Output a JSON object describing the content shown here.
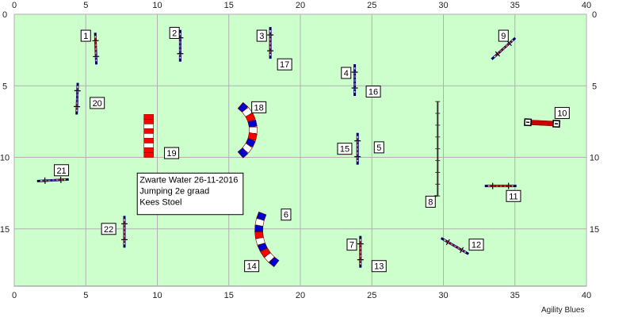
{
  "field": {
    "width_m": 40,
    "height_m": 19,
    "background": "#ccffcc",
    "grid_color": "#b0b0b0",
    "x_ticks": [
      0,
      5,
      10,
      15,
      20,
      25,
      30,
      35,
      40
    ],
    "y_ticks": [
      0,
      5,
      10,
      15
    ]
  },
  "info": {
    "lines": [
      "Zwarte Water 26-11-2016",
      "Jumping 2e graad",
      "Kees Stoel"
    ]
  },
  "credit": "Agility Blues",
  "colors": {
    "pole": "#000066",
    "bar_red": "#cc0000",
    "tunnel_red": "#ff0000",
    "tunnel_white": "#ffffff",
    "tunnel_blue": "#0000cc",
    "wall": "#333333"
  },
  "obstacles": [
    {
      "n": "1",
      "type": "hurdle",
      "x": 5.7,
      "y": 2.4,
      "angle": 88,
      "label": [
        5,
        1.5
      ]
    },
    {
      "n": "2",
      "type": "hurdle",
      "x": 11.6,
      "y": 2.2,
      "angle": 90,
      "label": [
        11.2,
        1.3
      ]
    },
    {
      "n": "3",
      "type": "hurdle",
      "x": 17.9,
      "y": 2.0,
      "angle": 90,
      "label": [
        17.3,
        1.5
      ]
    },
    {
      "n": "17",
      "type": "label",
      "label": [
        18.9,
        3.5
      ]
    },
    {
      "n": "4",
      "type": "hurdle",
      "x": 23.8,
      "y": 4.6,
      "angle": 90,
      "label": [
        23.2,
        4.1
      ]
    },
    {
      "n": "16",
      "type": "label",
      "label": [
        25.1,
        5.4
      ]
    },
    {
      "n": "9",
      "type": "hurdle",
      "x": 34.2,
      "y": 2.4,
      "angle": -42,
      "label": [
        34.2,
        1.5
      ]
    },
    {
      "n": "20",
      "type": "hurdle",
      "x": 4.4,
      "y": 5.9,
      "angle": 92,
      "label": [
        5.8,
        6.2
      ]
    },
    {
      "n": "18",
      "type": "tunnel",
      "cx": 14.6,
      "cy": 8.1,
      "r": 2.1,
      "a1": -55,
      "a2": 55,
      "label": [
        17.1,
        6.5
      ]
    },
    {
      "n": "19",
      "type": "tunnel_straight",
      "x": 9.4,
      "y1": 7.0,
      "y2": 10.0,
      "label": [
        11.0,
        9.7
      ]
    },
    {
      "n": "10",
      "type": "hurdle_flat",
      "x": 36.9,
      "y": 7.6,
      "angle": 3,
      "label": [
        38.3,
        6.9
      ]
    },
    {
      "n": "8",
      "type": "wall",
      "x": 29.6,
      "y1": 6.1,
      "y2": 12.7,
      "label": [
        29.1,
        13.1
      ]
    },
    {
      "n": "15",
      "type": "hurdle",
      "x": 24.0,
      "y": 9.4,
      "angle": 90,
      "label": [
        23.1,
        9.4
      ]
    },
    {
      "n": "5",
      "type": "label",
      "label": [
        25.5,
        9.3
      ]
    },
    {
      "n": "21",
      "type": "hurdle",
      "x": 2.7,
      "y": 11.6,
      "angle": -3,
      "label": [
        3.3,
        10.9
      ]
    },
    {
      "n": "11",
      "type": "hurdle",
      "x": 34.0,
      "y": 12.0,
      "angle": 0,
      "label": [
        34.9,
        12.7
      ]
    },
    {
      "n": "6",
      "type": "tunnel",
      "cx": 19.9,
      "cy": 15.1,
      "r": 2.8,
      "a1": 124,
      "a2": 205,
      "label": [
        19.0,
        14.0
      ]
    },
    {
      "n": "14",
      "type": "label",
      "label": [
        16.6,
        17.6
      ]
    },
    {
      "n": "22",
      "type": "hurdle",
      "x": 7.7,
      "y": 15.2,
      "angle": 90,
      "label": [
        6.6,
        15.0
      ]
    },
    {
      "n": "7",
      "type": "hurdle",
      "x": 24.2,
      "y": 16.6,
      "angle": 90,
      "label": [
        23.6,
        16.1
      ]
    },
    {
      "n": "13",
      "type": "label",
      "label": [
        25.5,
        17.6
      ]
    },
    {
      "n": "12",
      "type": "hurdle",
      "x": 30.8,
      "y": 16.2,
      "angle": 30,
      "label": [
        32.3,
        16.1
      ]
    }
  ]
}
